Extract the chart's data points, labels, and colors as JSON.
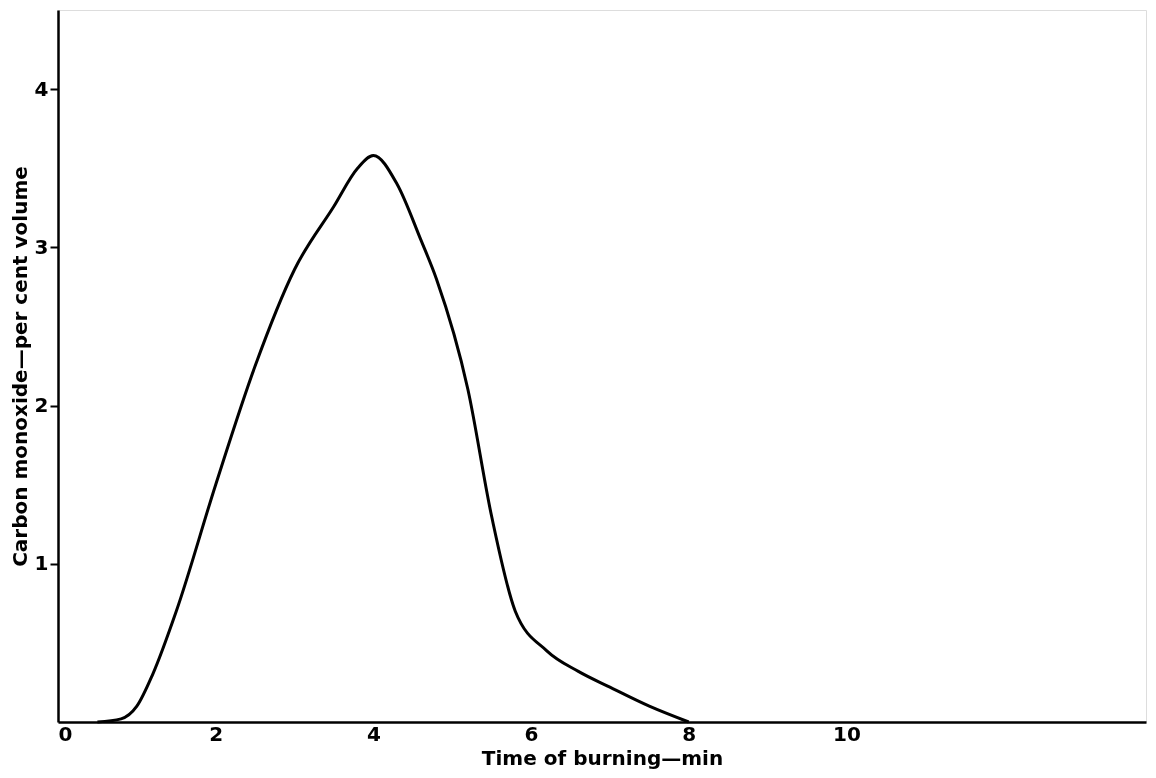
{
  "chart_data": {
    "type": "line",
    "xlabel": "Time of burning—min",
    "ylabel": "Carbon monoxide—per cent volume",
    "x": [
      0.5,
      0.8,
      1.0,
      1.2,
      1.5,
      2.0,
      2.5,
      3.0,
      3.5,
      3.8,
      4.0,
      4.3,
      4.6,
      4.8,
      5.2,
      5.5,
      5.8,
      6.2,
      6.6,
      7.0,
      7.5,
      8.0
    ],
    "series": [
      {
        "color": "#000000",
        "values": [
          0,
          0.02,
          0.1,
          0.3,
          0.7,
          1.5,
          2.25,
          2.86,
          3.26,
          3.5,
          3.58,
          3.4,
          3.05,
          2.8,
          2.1,
          1.3,
          0.7,
          0.45,
          0.32,
          0.22,
          0.1,
          0
        ]
      }
    ],
    "xlim": [
      0,
      13.8
    ],
    "ylim": [
      0,
      4.5
    ],
    "xticks": [
      0,
      2,
      4,
      6,
      8,
      10
    ],
    "yticks": [
      1,
      2,
      3,
      4
    ],
    "grid": false,
    "marker": "none",
    "line_style": "solid"
  }
}
